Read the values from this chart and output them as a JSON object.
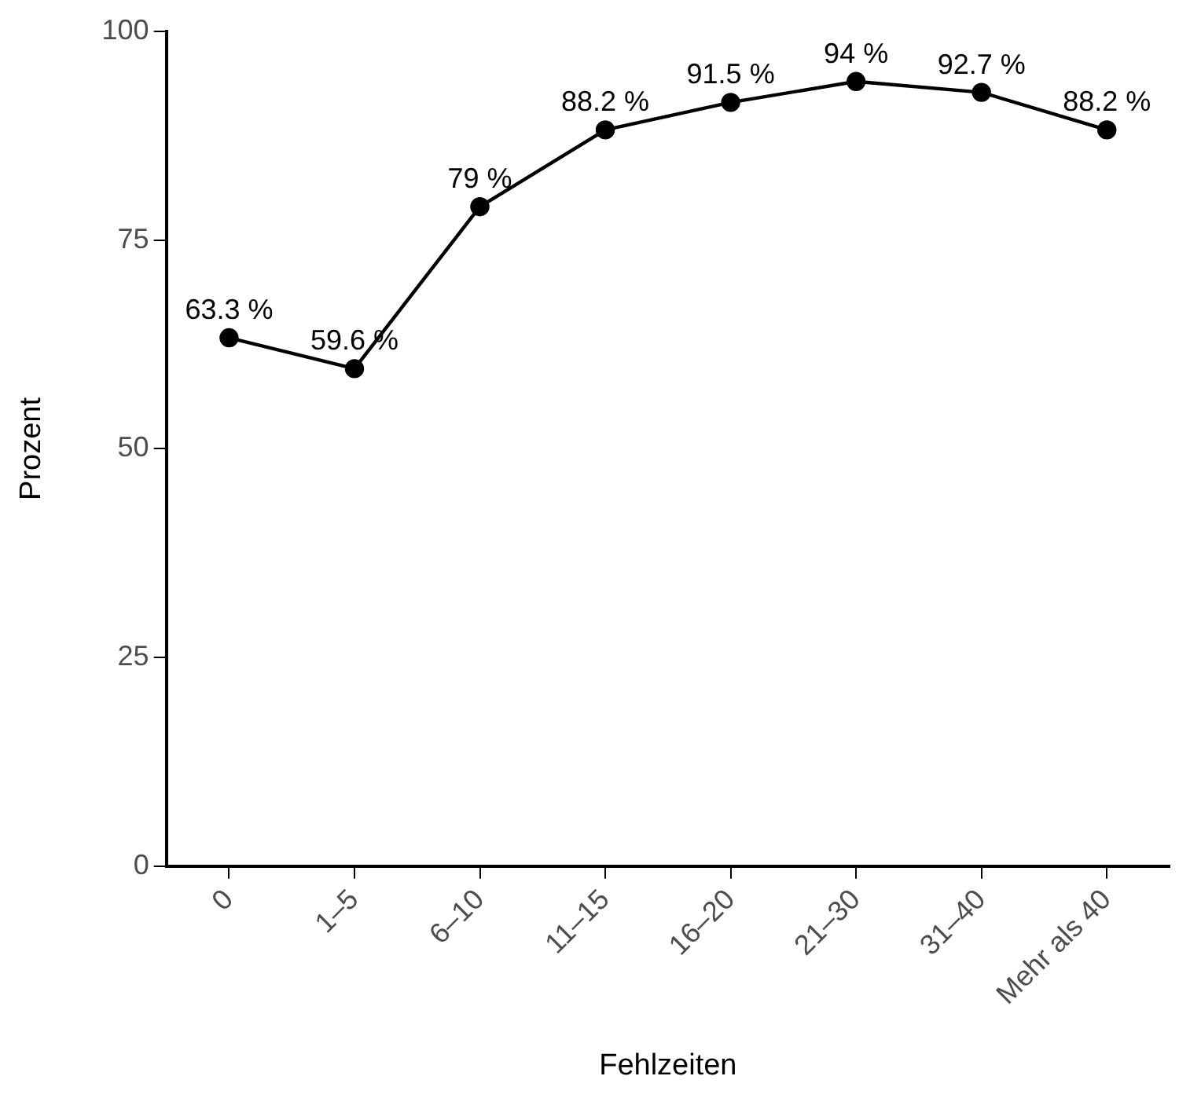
{
  "chart_data": {
    "type": "line",
    "xlabel": "Fehlzeiten",
    "ylabel": "Prozent",
    "categories": [
      "0",
      "1–5",
      "6–10",
      "11–15",
      "16–20",
      "21–30",
      "31–40",
      "Mehr als 40"
    ],
    "series": [
      {
        "color": "#000000",
        "values": [
          63.3,
          59.6,
          79,
          88.2,
          91.5,
          94,
          92.7,
          88.2
        ],
        "value_labels": [
          "63.3 %",
          "59.6 %",
          "79 %",
          "88.2 %",
          "91.5 %",
          "94 %",
          "92.7 %",
          "88.2 %"
        ]
      }
    ],
    "ylim": [
      0,
      100
    ],
    "yticks": [
      0,
      25,
      50,
      75,
      100
    ],
    "grid": false,
    "legend": false,
    "marker": "circle",
    "line_style": "solid"
  }
}
